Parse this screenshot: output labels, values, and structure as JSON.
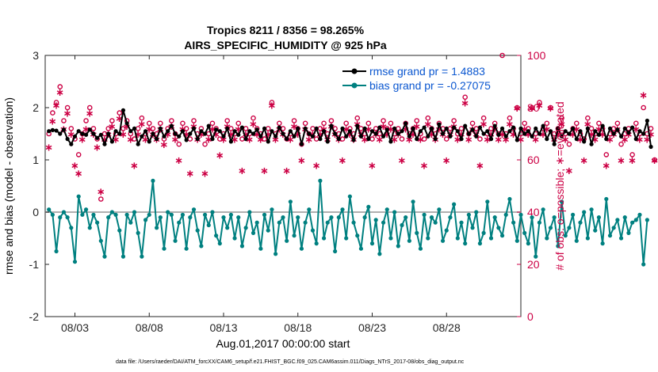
{
  "chart_data": {
    "type": "line",
    "title": [
      "Tropics 8211 / 8356 = 98.265%",
      "AIRS_SPECIFIC_HUMIDITY @ 925 hPa"
    ],
    "xlabel": "Aug.01,2017 00:00:00 start",
    "ylabel_left": "rmse and bias (model - observation)",
    "ylabel_right": "# of obs: o=possible; ∗=evaluated",
    "footer": "data file: /Users/raeder/DAI/ATM_forcXX/CAM6_setup/f.e21.FHIST_BGC.f09_025.CAM6assim.011/Diags_NTrS_2017-08/obs_diag_output.nc",
    "xlim": [
      1,
      33
    ],
    "ylim_left": [
      -2,
      3
    ],
    "ylim_right": [
      0,
      100
    ],
    "x_ticks": [
      3,
      8,
      13,
      18,
      23,
      28
    ],
    "x_tick_labels": [
      "08/03",
      "08/08",
      "08/13",
      "08/18",
      "08/23",
      "08/28"
    ],
    "y_left_ticks": [
      -2,
      -1,
      0,
      1,
      2,
      3
    ],
    "y_right_ticks": [
      0,
      20,
      40,
      60,
      80,
      100
    ],
    "x_start": 1.25,
    "x_step": 0.25,
    "colors": {
      "rmse": "#000000",
      "bias": "#008080",
      "obs": "#cc0044",
      "zero_line": "#b0b0b0",
      "legend_text": "#0b57d0"
    },
    "series": [
      {
        "name": "rmse",
        "legend": "rmse grand pr = 1.4883",
        "values": [
          1.55,
          1.57,
          1.56,
          1.5,
          1.58,
          1.4,
          1.3,
          1.45,
          1.55,
          1.5,
          1.48,
          1.58,
          1.5,
          1.42,
          1.48,
          1.3,
          1.5,
          1.35,
          1.55,
          1.5,
          1.95,
          1.7,
          1.55,
          1.6,
          1.3,
          1.45,
          1.55,
          1.35,
          1.5,
          1.4,
          1.6,
          1.45,
          1.55,
          1.65,
          1.5,
          1.45,
          1.55,
          1.38,
          1.5,
          1.6,
          1.4,
          1.55,
          1.5,
          1.65,
          1.4,
          1.58,
          1.55,
          1.45,
          1.6,
          1.35,
          1.55,
          1.48,
          1.62,
          1.4,
          1.55,
          1.5,
          1.58,
          1.45,
          1.6,
          1.35,
          1.55,
          1.45,
          1.62,
          1.5,
          1.4,
          1.55,
          1.45,
          1.6,
          1.3,
          1.6,
          1.5,
          1.45,
          1.6,
          1.4,
          1.55,
          1.35,
          1.65,
          1.5,
          1.4,
          1.6,
          1.45,
          1.55,
          1.38,
          1.65,
          1.45,
          1.6,
          1.4,
          1.55,
          1.5,
          1.62,
          1.45,
          1.58,
          1.35,
          1.6,
          1.5,
          1.55,
          1.7,
          1.45,
          1.6,
          1.4,
          1.55,
          1.62,
          1.45,
          1.6,
          1.4,
          1.68,
          1.5,
          1.6,
          1.45,
          1.62,
          1.55,
          1.4,
          1.65,
          1.5,
          1.58,
          1.45,
          1.62,
          1.5,
          1.55,
          1.4,
          1.65,
          1.48,
          1.6,
          1.45,
          1.55,
          1.62,
          1.38,
          1.6,
          1.5,
          1.55,
          1.45,
          1.6,
          1.5,
          1.65,
          1.4,
          1.55,
          1.3,
          1.6,
          1.45,
          1.55,
          1.5,
          1.6,
          1.4,
          1.55,
          1.35,
          1.6,
          1.3,
          1.55,
          1.48,
          1.65,
          1.4,
          1.6,
          1.5,
          1.58,
          1.45,
          1.6,
          1.52,
          1.62,
          1.4,
          1.55,
          1.5,
          1.75,
          1.25
        ]
      },
      {
        "name": "bias",
        "legend": "bias grand pr = -0.27075",
        "values": [
          0.05,
          -0.05,
          -0.75,
          -0.1,
          0.0,
          -0.1,
          -0.3,
          -0.95,
          0.3,
          -0.05,
          0.05,
          -0.3,
          -0.05,
          -0.2,
          -0.55,
          -0.85,
          -0.1,
          0.0,
          -0.05,
          -0.35,
          -0.85,
          -0.05,
          -0.2,
          0.0,
          -0.4,
          -0.85,
          -0.15,
          -0.05,
          0.6,
          -0.3,
          -0.1,
          -0.7,
          0.0,
          -0.05,
          -0.55,
          -0.2,
          -0.05,
          -0.7,
          -0.1,
          0.05,
          -0.35,
          -0.65,
          -0.05,
          -0.25,
          0.0,
          -0.45,
          -0.6,
          -0.1,
          -0.3,
          -0.05,
          -0.5,
          -0.1,
          -0.65,
          -0.3,
          0.0,
          -0.4,
          -0.2,
          -0.7,
          -0.05,
          -0.35,
          0.05,
          -0.8,
          -0.2,
          -0.1,
          -0.55,
          0.2,
          -0.45,
          -0.1,
          -0.7,
          -0.2,
          0.05,
          -0.35,
          -0.6,
          0.6,
          -0.5,
          -0.2,
          -0.1,
          -0.75,
          -0.1,
          0.05,
          -0.5,
          0.3,
          -0.2,
          -0.45,
          -0.7,
          -0.1,
          0.1,
          -0.6,
          -0.15,
          -0.8,
          -0.2,
          0.05,
          -0.5,
          0.0,
          -0.65,
          -0.25,
          -0.1,
          -0.55,
          0.2,
          -0.4,
          -0.7,
          -0.05,
          -0.5,
          -0.1,
          -0.2,
          0.05,
          -0.55,
          -0.35,
          -0.1,
          0.15,
          -0.5,
          -0.2,
          -0.6,
          -0.05,
          -0.3,
          0.0,
          -0.6,
          -0.4,
          0.2,
          -0.5,
          -0.1,
          -0.3,
          -0.45,
          -0.05,
          0.25,
          -0.2,
          -0.55,
          -0.05,
          -0.4,
          -0.6,
          -0.1,
          -0.85,
          -0.2,
          0.05,
          -0.5,
          -0.3,
          -0.1,
          -0.65,
          0.2,
          -0.45,
          -0.3,
          -0.05,
          -0.55,
          -0.2,
          0.0,
          -0.5,
          0.05,
          -0.35,
          -0.1,
          -0.6,
          0.25,
          -0.45,
          -0.3,
          -0.15,
          -0.5,
          -0.1,
          -0.4,
          -0.2,
          -0.15,
          -0.05,
          -1.0,
          -0.15
        ]
      },
      {
        "name": "obs possible",
        "values": [
          70,
          78,
          82,
          88,
          75,
          80,
          72,
          68,
          62,
          70,
          75,
          80,
          72,
          68,
          45,
          70,
          72,
          75,
          70,
          78,
          72,
          75,
          70,
          68,
          72,
          76,
          70,
          74,
          72,
          70,
          74,
          68,
          72,
          75,
          70,
          66,
          74,
          72,
          68,
          75,
          70,
          72,
          66,
          70,
          74,
          72,
          68,
          70,
          75,
          72,
          70,
          74,
          68,
          72,
          70,
          76,
          72,
          70,
          68,
          72,
          82,
          70,
          74,
          72,
          68,
          70,
          75,
          72,
          66,
          74,
          70,
          72,
          68,
          72,
          74,
          70,
          75,
          72,
          70,
          68,
          74,
          72,
          70,
          76,
          72,
          70,
          74,
          68,
          72,
          70,
          75,
          72,
          74,
          70,
          72,
          68,
          74,
          70,
          72,
          75,
          70,
          68,
          76,
          72,
          70,
          74,
          72,
          68,
          72,
          75,
          70,
          72,
          84,
          70,
          74,
          72,
          68,
          76,
          70,
          72,
          74,
          70,
          100,
          70,
          76,
          72,
          80,
          70,
          74,
          72,
          80,
          70,
          82,
          72,
          74,
          80,
          70,
          72,
          76,
          70,
          66,
          72,
          74,
          70,
          68,
          76,
          72,
          70,
          74,
          72,
          62,
          70,
          72,
          74,
          66,
          70,
          72,
          62,
          74,
          70,
          80,
          70,
          72,
          60
        ]
      },
      {
        "name": "obs evaluated",
        "values": [
          65,
          75,
          81,
          86,
          72,
          78,
          70,
          58,
          55,
          68,
          72,
          78,
          70,
          65,
          48,
          68,
          70,
          73,
          68,
          76,
          70,
          73,
          68,
          58,
          70,
          74,
          68,
          72,
          70,
          68,
          72,
          66,
          70,
          73,
          68,
          60,
          72,
          70,
          55,
          73,
          68,
          70,
          55,
          68,
          72,
          70,
          62,
          68,
          73,
          70,
          68,
          72,
          56,
          70,
          68,
          74,
          70,
          68,
          56,
          70,
          81,
          68,
          72,
          70,
          56,
          68,
          73,
          70,
          60,
          72,
          68,
          70,
          58,
          70,
          72,
          68,
          73,
          70,
          68,
          60,
          72,
          70,
          68,
          74,
          70,
          68,
          72,
          58,
          70,
          68,
          73,
          70,
          72,
          68,
          70,
          60,
          72,
          68,
          70,
          73,
          68,
          58,
          74,
          70,
          68,
          72,
          70,
          60,
          70,
          73,
          68,
          70,
          82,
          68,
          72,
          70,
          58,
          74,
          68,
          70,
          72,
          68,
          70,
          68,
          74,
          70,
          80,
          68,
          72,
          70,
          80,
          68,
          81,
          70,
          72,
          80,
          68,
          70,
          74,
          68,
          56,
          70,
          72,
          68,
          60,
          74,
          70,
          68,
          72,
          70,
          58,
          68,
          70,
          72,
          60,
          68,
          70,
          60,
          72,
          68,
          85,
          68,
          70,
          60
        ]
      }
    ]
  }
}
